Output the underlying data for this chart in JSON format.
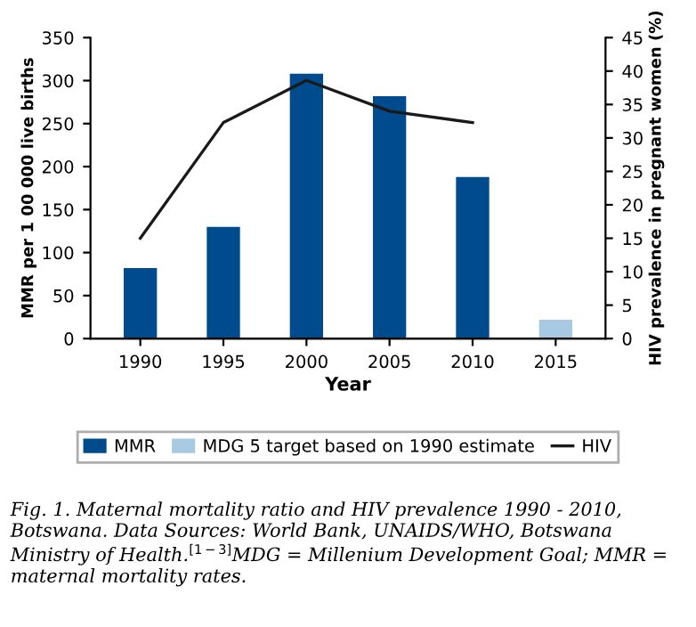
{
  "chart_data": {
    "type": "bar",
    "categories": [
      "1990",
      "1995",
      "2000",
      "2005",
      "2010",
      "2015"
    ],
    "xlabel": "Year",
    "ylabel": "MMR per 1 00 000 live births",
    "y2label": "HIV prevalence in pregnant women (%)",
    "series": [
      {
        "name": "MMR",
        "color": "#004b8d",
        "values": [
          82,
          130,
          308,
          282,
          188,
          null
        ]
      },
      {
        "name": "MDG 5 target based on 1990 estimate",
        "color": "#a7c9e2",
        "values": [
          null,
          null,
          null,
          null,
          null,
          22
        ]
      },
      {
        "name": "HIV",
        "type": "line",
        "axis": "y2",
        "color": "#1a1a1a",
        "values": [
          15,
          32.3,
          38.6,
          34,
          32.3,
          null
        ]
      }
    ],
    "ylim": [
      0,
      350
    ],
    "yticks": [
      0,
      50,
      100,
      150,
      200,
      250,
      300,
      350
    ],
    "y2lim": [
      0,
      45
    ],
    "y2ticks": [
      0,
      5,
      10,
      15,
      20,
      25,
      30,
      35,
      40,
      45
    ],
    "legend": "bottom",
    "grid": false,
    "marker": "none",
    "line_style": "solid",
    "annotations": [
      "Fig. 1. Maternal mortality ratio and HIV prevalence 1990 - 2010, Botswana. Data Sources: World Bank, UNAIDS/WHO, Botswana Ministry of Health.$^{[1−3]}$MDG = Millenium Development Goal; MMR = maternal mortality rates."
    ]
  }
}
